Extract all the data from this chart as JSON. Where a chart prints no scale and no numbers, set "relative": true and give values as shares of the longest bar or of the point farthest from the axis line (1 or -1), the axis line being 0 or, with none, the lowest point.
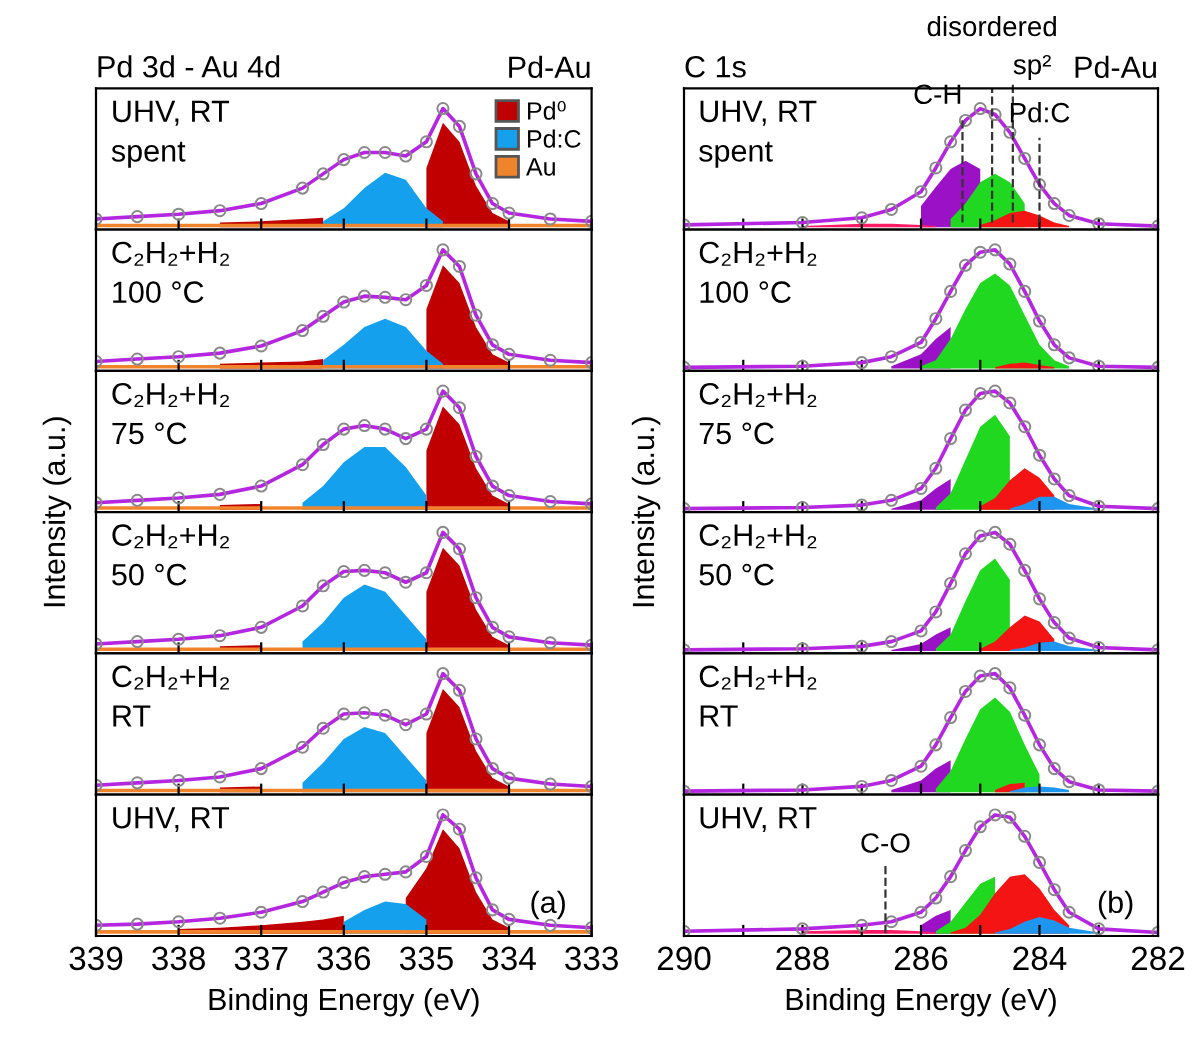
{
  "chart_data": [
    {
      "type": "area",
      "relative": true,
      "title": "Pd 3d - Au 4d",
      "annotations": [
        "UHV, RT\nspent",
        "Pd-Au"
      ],
      "legend": "top right",
      "tick_labels": false,
      "xlim": [
        339,
        333
      ],
      "xticks": [
        339,
        338,
        337,
        336,
        335,
        334,
        333
      ],
      "x": [
        339,
        338.5,
        338,
        337.5,
        337,
        336.5,
        336.25,
        336,
        335.75,
        335.5,
        335.25,
        335,
        334.8,
        334.6,
        334.4,
        334.2,
        334,
        333.5,
        333
      ],
      "series": [
        {
          "name": "Pd⁰",
          "color": "#c00000",
          "values": [
            null,
            null,
            null,
            0.04,
            0.05,
            0.07,
            0.08,
            null,
            null,
            null,
            null,
            0.5,
            0.88,
            0.72,
            0.35,
            0.12,
            0.05,
            null,
            null
          ]
        },
        {
          "name": "Pd:C",
          "color": "#15a0ee",
          "values": [
            null,
            null,
            null,
            null,
            null,
            null,
            0.05,
            0.16,
            0.33,
            0.46,
            0.4,
            0.16,
            0.05,
            null,
            null,
            null,
            null,
            null,
            null
          ]
        },
        {
          "name": "Au",
          "color": "#f0842c",
          "values": [
            0.03,
            0.03,
            0.03,
            0.03,
            0.03,
            0.03,
            0.03,
            0.03,
            0.03,
            0.03,
            0.03,
            0.03,
            0.03,
            0.03,
            0.03,
            0.03,
            0.03,
            0.03,
            0.03
          ]
        },
        {
          "type": "line",
          "marker": "circle",
          "color": "#b526e0",
          "values": [
            0.07,
            0.09,
            0.11,
            0.14,
            0.2,
            0.33,
            0.45,
            0.57,
            0.63,
            0.63,
            0.6,
            0.72,
            1.0,
            0.85,
            0.45,
            0.2,
            0.12,
            0.07,
            0.05
          ]
        }
      ]
    },
    {
      "type": "area",
      "relative": true,
      "annotations": [
        "C₂H₂+H₂\n100 °C"
      ],
      "tick_labels": false,
      "xlim": [
        339,
        333
      ],
      "xticks": [
        339,
        338,
        337,
        336,
        335,
        334,
        333
      ],
      "x": [
        339,
        338.5,
        338,
        337.5,
        337,
        336.5,
        336.25,
        336,
        335.75,
        335.5,
        335.25,
        335,
        334.8,
        334.6,
        334.4,
        334.2,
        334,
        333.5,
        333
      ],
      "series": [
        {
          "color": "#c00000",
          "values": [
            null,
            null,
            null,
            0.04,
            0.05,
            0.06,
            0.08,
            null,
            null,
            null,
            null,
            0.5,
            0.87,
            0.72,
            0.35,
            0.12,
            0.05,
            null,
            null
          ]
        },
        {
          "color": "#15a0ee",
          "values": [
            null,
            null,
            null,
            null,
            null,
            null,
            0.07,
            0.2,
            0.35,
            0.42,
            0.35,
            0.15,
            0.04,
            null,
            null,
            null,
            null,
            null,
            null
          ]
        },
        {
          "color": "#f0842c",
          "values": [
            0.03,
            0.03,
            0.03,
            0.03,
            0.03,
            0.03,
            0.03,
            0.03,
            0.03,
            0.03,
            0.03,
            0.03,
            0.03,
            0.03,
            0.03,
            0.03,
            0.03,
            0.03,
            0.03
          ]
        },
        {
          "type": "line",
          "marker": "circle",
          "color": "#b526e0",
          "values": [
            0.06,
            0.08,
            0.1,
            0.13,
            0.19,
            0.32,
            0.44,
            0.56,
            0.61,
            0.6,
            0.58,
            0.7,
            1.0,
            0.86,
            0.45,
            0.2,
            0.12,
            0.07,
            0.05
          ]
        }
      ]
    },
    {
      "type": "area",
      "relative": true,
      "ylabel": "Intensity (a.u.)",
      "annotations": [
        "C₂H₂+H₂\n75 °C"
      ],
      "tick_labels": false,
      "xlim": [
        339,
        333
      ],
      "xticks": [
        339,
        338,
        337,
        336,
        335,
        334,
        333
      ],
      "x": [
        339,
        338.5,
        338,
        337.5,
        337,
        336.5,
        336.25,
        336,
        335.75,
        335.5,
        335.25,
        335,
        334.8,
        334.6,
        334.4,
        334.2,
        334,
        333.5,
        333
      ],
      "series": [
        {
          "color": "#c00000",
          "values": [
            null,
            null,
            null,
            0.04,
            0.05,
            null,
            null,
            null,
            null,
            null,
            null,
            0.5,
            0.87,
            0.72,
            0.35,
            0.12,
            0.05,
            null,
            null
          ]
        },
        {
          "color": "#15a0ee",
          "values": [
            null,
            null,
            null,
            null,
            null,
            0.06,
            0.2,
            0.4,
            0.53,
            0.53,
            0.36,
            0.12,
            null,
            null,
            null,
            null,
            null,
            null,
            null
          ]
        },
        {
          "color": "#f0842c",
          "values": [
            0.03,
            0.03,
            0.03,
            0.03,
            0.03,
            0.03,
            0.03,
            0.03,
            0.03,
            0.03,
            0.03,
            0.03,
            0.03,
            0.03,
            0.03,
            0.03,
            0.03,
            0.03,
            0.03
          ]
        },
        {
          "type": "line",
          "marker": "circle",
          "color": "#b526e0",
          "values": [
            0.06,
            0.08,
            0.1,
            0.13,
            0.2,
            0.38,
            0.55,
            0.68,
            0.71,
            0.68,
            0.6,
            0.68,
            1.0,
            0.86,
            0.45,
            0.2,
            0.12,
            0.07,
            0.05
          ]
        }
      ]
    },
    {
      "type": "area",
      "relative": true,
      "annotations": [
        "C₂H₂+H₂\n50 °C"
      ],
      "tick_labels": false,
      "xlim": [
        339,
        333
      ],
      "xticks": [
        339,
        338,
        337,
        336,
        335,
        334,
        333
      ],
      "x": [
        339,
        338.5,
        338,
        337.5,
        337,
        336.5,
        336.25,
        336,
        335.75,
        335.5,
        335.25,
        335,
        334.8,
        334.6,
        334.4,
        334.2,
        334,
        333.5,
        333
      ],
      "series": [
        {
          "color": "#c00000",
          "values": [
            null,
            null,
            null,
            0.04,
            0.05,
            null,
            null,
            null,
            null,
            null,
            null,
            0.5,
            0.87,
            0.72,
            0.35,
            0.12,
            0.05,
            null,
            null
          ]
        },
        {
          "color": "#15a0ee",
          "values": [
            null,
            null,
            null,
            null,
            null,
            0.08,
            0.24,
            0.45,
            0.56,
            0.5,
            0.3,
            0.1,
            null,
            null,
            null,
            null,
            null,
            null,
            null
          ]
        },
        {
          "color": "#f0842c",
          "values": [
            0.03,
            0.03,
            0.03,
            0.03,
            0.03,
            0.03,
            0.03,
            0.03,
            0.03,
            0.03,
            0.03,
            0.03,
            0.03,
            0.03,
            0.03,
            0.03,
            0.03,
            0.03,
            0.03
          ]
        },
        {
          "type": "line",
          "marker": "circle",
          "color": "#b526e0",
          "values": [
            0.06,
            0.08,
            0.1,
            0.13,
            0.2,
            0.38,
            0.55,
            0.67,
            0.68,
            0.66,
            0.58,
            0.66,
            1.0,
            0.86,
            0.45,
            0.2,
            0.12,
            0.07,
            0.05
          ]
        }
      ]
    },
    {
      "type": "area",
      "relative": true,
      "annotations": [
        "C₂H₂+H₂\nRT"
      ],
      "tick_labels": false,
      "xlim": [
        339,
        333
      ],
      "xticks": [
        339,
        338,
        337,
        336,
        335,
        334,
        333
      ],
      "x": [
        339,
        338.5,
        338,
        337.5,
        337,
        336.5,
        336.25,
        336,
        335.75,
        335.5,
        335.25,
        335,
        334.8,
        334.6,
        334.4,
        334.2,
        334,
        333.5,
        333
      ],
      "series": [
        {
          "color": "#c00000",
          "values": [
            null,
            null,
            null,
            0.04,
            0.05,
            null,
            null,
            null,
            null,
            null,
            null,
            0.5,
            0.87,
            0.72,
            0.35,
            0.12,
            0.05,
            null,
            null
          ]
        },
        {
          "color": "#15a0ee",
          "values": [
            null,
            null,
            null,
            null,
            null,
            0.08,
            0.25,
            0.45,
            0.55,
            0.5,
            0.3,
            0.1,
            null,
            null,
            null,
            null,
            null,
            null,
            null
          ]
        },
        {
          "color": "#f0842c",
          "values": [
            0.03,
            0.03,
            0.03,
            0.03,
            0.03,
            0.03,
            0.03,
            0.03,
            0.03,
            0.03,
            0.03,
            0.03,
            0.03,
            0.03,
            0.03,
            0.03,
            0.03,
            0.03,
            0.03
          ]
        },
        {
          "type": "line",
          "marker": "circle",
          "color": "#b526e0",
          "values": [
            0.06,
            0.08,
            0.1,
            0.13,
            0.2,
            0.38,
            0.54,
            0.66,
            0.67,
            0.65,
            0.57,
            0.66,
            1.0,
            0.86,
            0.45,
            0.2,
            0.12,
            0.07,
            0.05
          ]
        }
      ]
    },
    {
      "type": "area",
      "relative": true,
      "xlabel": "Binding Energy (eV)",
      "annotations": [
        "UHV, RT",
        "(a)"
      ],
      "tick_labels": "x",
      "xlim": [
        339,
        333
      ],
      "xticks": [
        339,
        338,
        337,
        336,
        335,
        334,
        333
      ],
      "x": [
        339,
        338.5,
        338,
        337.5,
        337,
        336.5,
        336.25,
        336,
        335.75,
        335.5,
        335.25,
        335,
        334.8,
        334.6,
        334.4,
        334.2,
        334,
        333.5,
        333
      ],
      "series": [
        {
          "color": "#c00000",
          "values": [
            null,
            null,
            0.04,
            0.05,
            0.07,
            0.1,
            0.12,
            0.15,
            null,
            null,
            0.3,
            0.55,
            0.88,
            0.72,
            0.35,
            0.12,
            0.05,
            null,
            null
          ]
        },
        {
          "color": "#15a0ee",
          "values": [
            null,
            null,
            null,
            null,
            null,
            null,
            null,
            0.1,
            0.2,
            0.27,
            0.25,
            0.12,
            null,
            null,
            null,
            null,
            null,
            null,
            null
          ]
        },
        {
          "color": "#f0842c",
          "values": [
            0.03,
            0.03,
            0.03,
            0.03,
            0.03,
            0.03,
            0.03,
            0.03,
            0.03,
            0.03,
            0.03,
            0.03,
            0.03,
            0.03,
            0.03,
            0.03,
            0.03,
            0.03,
            0.03
          ]
        },
        {
          "type": "line",
          "marker": "circle",
          "color": "#b526e0",
          "values": [
            0.07,
            0.08,
            0.1,
            0.13,
            0.18,
            0.27,
            0.35,
            0.43,
            0.48,
            0.5,
            0.52,
            0.65,
            1.0,
            0.88,
            0.47,
            0.2,
            0.12,
            0.07,
            0.05
          ]
        }
      ]
    },
    {
      "type": "area",
      "relative": true,
      "title": "C 1s",
      "annotations": [
        "UHV, RT\nspent",
        "Pd-Au"
      ],
      "tick_labels": false,
      "xlim": [
        290,
        282
      ],
      "xticks": [
        290,
        {
          "value": 289,
          "label": null
        },
        288,
        {
          "value": 287,
          "label": null
        },
        286,
        {
          "value": 285,
          "label": null
        },
        284,
        {
          "value": 283,
          "label": null
        },
        282
      ],
      "ref_lines": [
        {
          "axis": "x",
          "value": 285.3,
          "label": "C-H",
          "color": "#333333",
          "line_style": "dashed"
        },
        {
          "axis": "x",
          "value": 284.8,
          "label": "disordered",
          "color": "#333333",
          "line_style": "dashed"
        },
        {
          "axis": "x",
          "value": 284.45,
          "label": "sp²",
          "color": "#333333",
          "line_style": "dashed"
        },
        {
          "axis": "x",
          "value": 284.0,
          "label": "Pd:C",
          "color": "#333333",
          "line_style": "dashed"
        }
      ],
      "x": [
        290,
        288,
        287,
        286.5,
        286,
        285.75,
        285.5,
        285.25,
        285,
        284.75,
        284.5,
        284.25,
        284,
        283.75,
        283.5,
        283,
        282
      ],
      "series": [
        {
          "color": "#9b12c6",
          "values": [
            null,
            null,
            null,
            null,
            0.18,
            0.34,
            0.49,
            0.56,
            0.49,
            null,
            null,
            null,
            null,
            null,
            null,
            null,
            null
          ]
        },
        {
          "color": "#1fd81f",
          "values": [
            null,
            null,
            null,
            null,
            null,
            null,
            0.07,
            0.2,
            0.38,
            0.45,
            0.38,
            0.2,
            null,
            null,
            null,
            null,
            null
          ]
        },
        {
          "color": "#f51414",
          "values": [
            null,
            null,
            null,
            null,
            null,
            null,
            null,
            null,
            0.02,
            0.06,
            0.12,
            0.14,
            0.1,
            0.04,
            0.01,
            null,
            null
          ]
        },
        {
          "color": "#ff1a66",
          "values": [
            null,
            0.01,
            0.03,
            0.03,
            0.02,
            0.01,
            null,
            null,
            null,
            null,
            null,
            null,
            null,
            null,
            null,
            null,
            null
          ]
        },
        {
          "type": "line",
          "marker": "circle",
          "color": "#b526e0",
          "values": [
            0.02,
            0.04,
            0.08,
            0.15,
            0.3,
            0.5,
            0.72,
            0.9,
            1.0,
            0.95,
            0.8,
            0.58,
            0.36,
            0.2,
            0.1,
            0.03,
            0.01
          ]
        }
      ]
    },
    {
      "type": "area",
      "relative": true,
      "annotations": [
        "C₂H₂+H₂\n100 °C"
      ],
      "tick_labels": false,
      "xlim": [
        290,
        282
      ],
      "xticks": [
        290,
        {
          "value": 289,
          "label": null
        },
        288,
        {
          "value": 287,
          "label": null
        },
        286,
        {
          "value": 285,
          "label": null
        },
        284,
        {
          "value": 283,
          "label": null
        },
        282
      ],
      "x": [
        290,
        288,
        287,
        286.5,
        286,
        285.75,
        285.5,
        285.25,
        285,
        284.75,
        284.5,
        284.25,
        284,
        283.75,
        283.5,
        283,
        282
      ],
      "series": [
        {
          "color": "#9b12c6",
          "values": [
            null,
            null,
            null,
            0.02,
            0.12,
            0.25,
            0.35,
            null,
            null,
            null,
            null,
            null,
            null,
            null,
            null,
            null,
            null
          ]
        },
        {
          "color": "#1fd81f",
          "values": [
            null,
            null,
            null,
            null,
            0.02,
            0.07,
            0.25,
            0.5,
            0.72,
            0.8,
            0.7,
            0.45,
            0.2,
            0.07,
            0.02,
            null,
            null
          ]
        },
        {
          "color": "#f51414",
          "values": [
            null,
            null,
            null,
            null,
            null,
            null,
            null,
            null,
            null,
            0.01,
            0.04,
            0.05,
            0.03,
            0.01,
            null,
            null,
            null
          ]
        },
        {
          "type": "line",
          "marker": "circle",
          "color": "#b526e0",
          "values": [
            0.01,
            0.02,
            0.05,
            0.1,
            0.22,
            0.42,
            0.65,
            0.87,
            0.98,
            1.0,
            0.88,
            0.65,
            0.4,
            0.2,
            0.09,
            0.02,
            0.01
          ]
        }
      ]
    },
    {
      "type": "area",
      "relative": true,
      "ylabel": "Intensity (a.u.)",
      "annotations": [
        "C₂H₂+H₂\n75 °C"
      ],
      "tick_labels": false,
      "xlim": [
        290,
        282
      ],
      "xticks": [
        290,
        {
          "value": 289,
          "label": null
        },
        288,
        {
          "value": 287,
          "label": null
        },
        286,
        {
          "value": 285,
          "label": null
        },
        284,
        {
          "value": 283,
          "label": null
        },
        282
      ],
      "x": [
        290,
        288,
        287,
        286.5,
        286,
        285.75,
        285.5,
        285.25,
        285,
        284.75,
        284.5,
        284.25,
        284,
        283.75,
        283.5,
        283,
        282
      ],
      "series": [
        {
          "color": "#9b12c6",
          "values": [
            null,
            null,
            null,
            0.01,
            0.08,
            0.18,
            0.26,
            null,
            null,
            null,
            null,
            null,
            null,
            null,
            null,
            null,
            null
          ]
        },
        {
          "color": "#1fd81f",
          "values": [
            null,
            null,
            null,
            null,
            null,
            0.02,
            0.14,
            0.42,
            0.7,
            0.8,
            0.62,
            null,
            null,
            null,
            null,
            null,
            null
          ]
        },
        {
          "color": "#f51414",
          "values": [
            null,
            null,
            null,
            null,
            null,
            null,
            null,
            null,
            0.03,
            0.1,
            0.25,
            0.35,
            0.27,
            0.12,
            null,
            null,
            null
          ]
        },
        {
          "color": "#1e96f0",
          "values": [
            null,
            null,
            null,
            null,
            null,
            null,
            null,
            null,
            null,
            null,
            0.01,
            0.05,
            0.11,
            0.11,
            0.05,
            0.01,
            null
          ]
        },
        {
          "type": "line",
          "marker": "circle",
          "color": "#b526e0",
          "values": [
            0.01,
            0.02,
            0.04,
            0.08,
            0.18,
            0.35,
            0.6,
            0.84,
            0.98,
            1.0,
            0.9,
            0.7,
            0.46,
            0.26,
            0.12,
            0.03,
            0.01
          ]
        }
      ]
    },
    {
      "type": "area",
      "relative": true,
      "annotations": [
        "C₂H₂+H₂\n50 °C"
      ],
      "tick_labels": false,
      "xlim": [
        290,
        282
      ],
      "xticks": [
        290,
        {
          "value": 289,
          "label": null
        },
        288,
        {
          "value": 287,
          "label": null
        },
        286,
        {
          "value": 285,
          "label": null
        },
        284,
        {
          "value": 283,
          "label": null
        },
        282
      ],
      "x": [
        290,
        288,
        287,
        286.5,
        286,
        285.75,
        285.5,
        285.25,
        285,
        284.75,
        284.5,
        284.25,
        284,
        283.75,
        283.5,
        283,
        282
      ],
      "series": [
        {
          "color": "#9b12c6",
          "values": [
            null,
            null,
            null,
            0.01,
            0.06,
            0.14,
            0.2,
            null,
            null,
            null,
            null,
            null,
            null,
            null,
            null,
            null,
            null
          ]
        },
        {
          "color": "#1fd81f",
          "values": [
            null,
            null,
            null,
            null,
            null,
            0.02,
            0.14,
            0.42,
            0.68,
            0.78,
            0.6,
            null,
            null,
            null,
            null,
            null,
            null
          ]
        },
        {
          "color": "#f51414",
          "values": [
            null,
            null,
            null,
            null,
            null,
            null,
            null,
            null,
            0.02,
            0.08,
            0.2,
            0.3,
            0.25,
            0.1,
            null,
            null,
            null
          ]
        },
        {
          "color": "#1e96f0",
          "values": [
            null,
            null,
            null,
            null,
            null,
            null,
            null,
            null,
            null,
            null,
            0.01,
            0.03,
            0.07,
            0.08,
            0.04,
            0.01,
            null
          ]
        },
        {
          "type": "line",
          "marker": "circle",
          "color": "#b526e0",
          "values": [
            0.01,
            0.02,
            0.04,
            0.08,
            0.17,
            0.33,
            0.57,
            0.82,
            0.97,
            1.0,
            0.9,
            0.68,
            0.44,
            0.24,
            0.11,
            0.03,
            0.01
          ]
        }
      ]
    },
    {
      "type": "area",
      "relative": true,
      "annotations": [
        "C₂H₂+H₂\nRT"
      ],
      "tick_labels": false,
      "xlim": [
        290,
        282
      ],
      "xticks": [
        290,
        {
          "value": 289,
          "label": null
        },
        288,
        {
          "value": 287,
          "label": null
        },
        286,
        {
          "value": 285,
          "label": null
        },
        284,
        {
          "value": 283,
          "label": null
        },
        282
      ],
      "x": [
        290,
        288,
        287,
        286.5,
        286,
        285.75,
        285.5,
        285.25,
        285,
        284.75,
        284.5,
        284.25,
        284,
        283.75,
        283.5,
        283,
        282
      ],
      "series": [
        {
          "color": "#9b12c6",
          "values": [
            null,
            null,
            null,
            0.02,
            0.1,
            0.2,
            0.27,
            null,
            null,
            null,
            null,
            null,
            null,
            null,
            null,
            null,
            null
          ]
        },
        {
          "color": "#1fd81f",
          "values": [
            null,
            null,
            null,
            null,
            null,
            0.03,
            0.18,
            0.45,
            0.7,
            0.8,
            0.68,
            0.4,
            0.15,
            null,
            null,
            null,
            null
          ]
        },
        {
          "color": "#f51414",
          "values": [
            null,
            null,
            null,
            null,
            null,
            null,
            null,
            null,
            null,
            0.02,
            0.07,
            0.08,
            null,
            null,
            null,
            null,
            null
          ]
        },
        {
          "color": "#1e96f0",
          "values": [
            null,
            null,
            null,
            null,
            null,
            null,
            null,
            null,
            null,
            null,
            0.01,
            0.04,
            0.05,
            0.04,
            0.02,
            null,
            null
          ]
        },
        {
          "type": "line",
          "marker": "circle",
          "color": "#b526e0",
          "values": [
            0.01,
            0.02,
            0.05,
            0.1,
            0.22,
            0.4,
            0.63,
            0.85,
            0.98,
            1.0,
            0.88,
            0.65,
            0.4,
            0.2,
            0.09,
            0.02,
            0.01
          ]
        }
      ]
    },
    {
      "type": "area",
      "relative": true,
      "xlabel": "Binding Energy (eV)",
      "annotations": [
        "UHV, RT",
        "(b)"
      ],
      "tick_labels": "x",
      "xlim": [
        290,
        282
      ],
      "xticks": [
        290,
        {
          "value": 289,
          "label": null
        },
        288,
        {
          "value": 287,
          "label": null
        },
        286,
        {
          "value": 285,
          "label": null
        },
        284,
        {
          "value": 283,
          "label": null
        },
        282
      ],
      "ref_lines": [
        {
          "axis": "x",
          "value": 286.6,
          "label": "C-O",
          "color": "#333333",
          "line_style": "dashed"
        }
      ],
      "x": [
        290,
        288,
        287,
        286.5,
        286,
        285.75,
        285.5,
        285.25,
        285,
        284.75,
        284.5,
        284.25,
        284,
        283.75,
        283.5,
        283,
        282
      ],
      "series": [
        {
          "color": "#9b12c6",
          "values": [
            null,
            null,
            null,
            null,
            0.07,
            0.15,
            0.2,
            null,
            null,
            null,
            null,
            null,
            null,
            null,
            null,
            null,
            null
          ]
        },
        {
          "color": "#1fd81f",
          "values": [
            null,
            null,
            null,
            null,
            null,
            0.02,
            0.1,
            0.26,
            0.42,
            0.48,
            null,
            null,
            null,
            null,
            null,
            null,
            null
          ]
        },
        {
          "color": "#f51414",
          "values": [
            null,
            null,
            null,
            null,
            null,
            null,
            0.01,
            0.05,
            0.16,
            0.34,
            0.48,
            0.5,
            0.38,
            0.2,
            0.07,
            null,
            null
          ]
        },
        {
          "color": "#1e96f0",
          "values": [
            null,
            null,
            null,
            null,
            null,
            null,
            null,
            null,
            null,
            0.01,
            0.04,
            0.1,
            0.14,
            0.11,
            0.05,
            0.01,
            null
          ]
        },
        {
          "color": "#ff1a66",
          "values": [
            null,
            0.02,
            0.03,
            0.03,
            0.02,
            0.01,
            null,
            null,
            null,
            null,
            null,
            null,
            null,
            null,
            null,
            null,
            null
          ]
        },
        {
          "type": "line",
          "marker": "circle",
          "color": "#b526e0",
          "values": [
            0.02,
            0.04,
            0.07,
            0.1,
            0.18,
            0.3,
            0.48,
            0.7,
            0.9,
            1.0,
            0.98,
            0.82,
            0.6,
            0.37,
            0.18,
            0.04,
            0.01
          ]
        }
      ]
    }
  ]
}
